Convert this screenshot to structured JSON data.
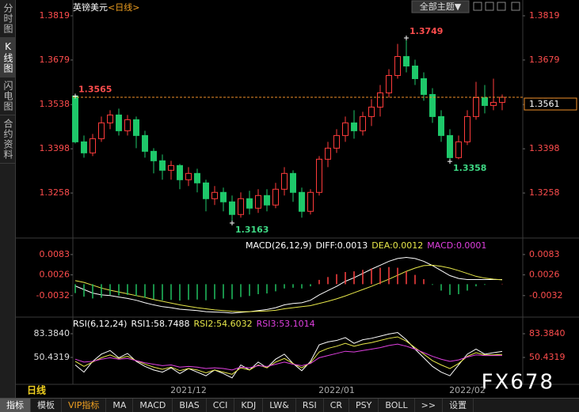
{
  "ui": {
    "sidebar_tabs": [
      "分时图",
      "K线图",
      "闪电图",
      "合约资料"
    ],
    "theme_button": "全部主题▼",
    "period_label": "日线",
    "watermark": "FX678",
    "bottom_tabs": [
      "指标",
      "模板",
      "VIP指标",
      "MA",
      "MACD",
      "BIAS",
      "CCI",
      "KDJ",
      "LW&",
      "RSI",
      "CR",
      "PSY",
      "BOLL",
      ">>",
      "设置"
    ]
  },
  "chart_data": [
    {
      "type": "candlestick",
      "title": "英镑美元",
      "subtitle": "<日线>",
      "up_color": "#ff3b3b",
      "down_color": "#1ec86a",
      "categories": [
        null,
        null,
        null,
        null,
        null,
        null,
        null,
        null,
        null,
        null,
        null,
        null,
        null,
        "2021/12",
        null,
        null,
        null,
        null,
        null,
        null,
        null,
        null,
        null,
        null,
        null,
        null,
        null,
        null,
        null,
        null,
        "2022/01",
        null,
        null,
        null,
        null,
        null,
        null,
        null,
        null,
        null,
        null,
        null,
        null,
        null,
        null,
        "2022/02",
        null,
        null,
        null,
        null
      ],
      "open": [
        1.3565,
        1.342,
        1.3385,
        1.343,
        1.348,
        1.3505,
        1.3455,
        1.349,
        1.344,
        1.339,
        1.336,
        1.333,
        1.3345,
        1.33,
        1.332,
        1.329,
        1.324,
        1.326,
        1.323,
        1.319,
        1.324,
        1.321,
        1.325,
        1.322,
        1.327,
        1.332,
        1.326,
        1.32,
        1.326,
        1.3365,
        1.34,
        1.344,
        1.348,
        1.3455,
        1.35,
        1.353,
        1.3575,
        1.363,
        1.369,
        1.366,
        1.362,
        1.357,
        1.35,
        1.344,
        1.337,
        1.342,
        1.35,
        1.356,
        1.3535,
        1.3545
      ],
      "high": [
        1.357,
        1.344,
        1.3445,
        1.35,
        1.352,
        1.3525,
        1.3505,
        1.35,
        1.3455,
        1.34,
        1.338,
        1.336,
        1.335,
        1.334,
        1.3335,
        1.33,
        1.328,
        1.3275,
        1.325,
        1.326,
        1.3265,
        1.327,
        1.327,
        1.329,
        1.334,
        1.333,
        1.3275,
        1.327,
        1.3375,
        1.342,
        1.346,
        1.35,
        1.352,
        1.3515,
        1.3555,
        1.36,
        1.365,
        1.373,
        1.3749,
        1.368,
        1.364,
        1.359,
        1.352,
        1.346,
        1.344,
        1.352,
        1.361,
        1.36,
        1.362,
        1.357
      ],
      "low": [
        1.3415,
        1.337,
        1.3375,
        1.342,
        1.346,
        1.344,
        1.344,
        1.34,
        1.337,
        1.332,
        1.33,
        1.33,
        1.327,
        1.328,
        1.326,
        1.32,
        1.322,
        1.32,
        1.3163,
        1.318,
        1.319,
        1.3195,
        1.32,
        1.321,
        1.325,
        1.323,
        1.318,
        1.319,
        1.325,
        1.334,
        1.3385,
        1.342,
        1.343,
        1.344,
        1.347,
        1.35,
        1.356,
        1.362,
        1.364,
        1.36,
        1.355,
        1.348,
        1.342,
        1.3358,
        1.3365,
        1.341,
        1.349,
        1.351,
        1.352,
        1.352
      ],
      "close": [
        1.342,
        1.3385,
        1.343,
        1.348,
        1.3505,
        1.3455,
        1.349,
        1.344,
        1.339,
        1.336,
        1.333,
        1.3345,
        1.33,
        1.332,
        1.329,
        1.324,
        1.326,
        1.323,
        1.319,
        1.324,
        1.321,
        1.325,
        1.322,
        1.327,
        1.332,
        1.326,
        1.32,
        1.326,
        1.3365,
        1.34,
        1.344,
        1.348,
        1.3455,
        1.35,
        1.353,
        1.3575,
        1.363,
        1.369,
        1.366,
        1.362,
        1.357,
        1.35,
        1.344,
        1.337,
        1.342,
        1.35,
        1.356,
        1.3535,
        1.3545,
        1.3561
      ],
      "annotations": [
        1.3565,
        1.3749,
        1.3358,
        1.3163
      ],
      "last_price": 1.3561,
      "last_price_color": "#f0902a",
      "ylim": [
        1.3118,
        1.3864
      ],
      "yticks": [
        1.3258,
        1.3398,
        1.3538,
        1.3679,
        1.3819
      ]
    },
    {
      "type": "macd",
      "title": "MACD(26,12,9)",
      "series": [
        {
          "name": "DIFF:",
          "color": "#ffffff",
          "values": [
            -0.0005,
            -0.0015,
            -0.0025,
            -0.003,
            -0.0032,
            -0.0036,
            -0.004,
            -0.0045,
            -0.0052,
            -0.0058,
            -0.0063,
            -0.0066,
            -0.007,
            -0.0072,
            -0.0074,
            -0.0077,
            -0.0078,
            -0.0079,
            -0.0081,
            -0.0079,
            -0.0077,
            -0.0074,
            -0.0071,
            -0.0066,
            -0.0058,
            -0.0054,
            -0.0052,
            -0.0045,
            -0.003,
            -0.0018,
            -0.0006,
            0.0008,
            0.0018,
            0.003,
            0.0042,
            0.0053,
            0.0064,
            0.0072,
            0.0075,
            0.0072,
            0.0064,
            0.0052,
            0.0038,
            0.0024,
            0.0016,
            0.0013,
            0.0013,
            0.0013,
            0.0013,
            0.0013
          ]
        },
        {
          "name": "DEA:",
          "color": "#e8e84a",
          "values": [
            0.001,
            0.0005,
            -0.0003,
            -0.0011,
            -0.0017,
            -0.0022,
            -0.0027,
            -0.0032,
            -0.0037,
            -0.0043,
            -0.0048,
            -0.0053,
            -0.0058,
            -0.0062,
            -0.0066,
            -0.0069,
            -0.0072,
            -0.0074,
            -0.0076,
            -0.0077,
            -0.0077,
            -0.0076,
            -0.0075,
            -0.0073,
            -0.0069,
            -0.0066,
            -0.0063,
            -0.006,
            -0.0054,
            -0.0048,
            -0.0041,
            -0.0033,
            -0.0024,
            -0.0015,
            -0.0006,
            0.0004,
            0.0014,
            0.0025,
            0.0036,
            0.0045,
            0.0052,
            0.0053,
            0.005,
            0.0045,
            0.0038,
            0.003,
            0.0022,
            0.0017,
            0.0014,
            0.0012
          ]
        },
        {
          "name": "MACD:",
          "color": "#e040e0",
          "style": "histogram",
          "up_color": "#ff4040",
          "down_color": "#20c060",
          "values": [
            -0.0025,
            -0.0035,
            -0.004,
            -0.0038,
            -0.003,
            -0.0032,
            -0.003,
            -0.0033,
            -0.0038,
            -0.0042,
            -0.0045,
            -0.0044,
            -0.0046,
            -0.0044,
            -0.0043,
            -0.0045,
            -0.0042,
            -0.004,
            -0.0042,
            -0.0036,
            -0.0033,
            -0.0028,
            -0.0026,
            -0.002,
            -0.0012,
            -0.001,
            -0.0012,
            -0.0006,
            0.0012,
            0.002,
            0.0028,
            0.0034,
            0.0036,
            0.004,
            0.0044,
            0.0046,
            0.0048,
            0.0046,
            0.0036,
            0.0026,
            0.0014,
            -0.0002,
            -0.0018,
            -0.003,
            -0.0028,
            -0.0018,
            -0.0006,
            -0.0002,
            0,
            0.0001
          ]
        }
      ],
      "ylim": [
        -0.009,
        0.0127
      ],
      "yticks": [
        -0.0032,
        0.0026,
        0.0083
      ]
    },
    {
      "type": "rsi",
      "title": "RSI(6,12,24)",
      "series": [
        {
          "name": "RSI1:",
          "color": "#ffffff",
          "values": [
            40,
            30,
            45,
            55,
            60,
            50,
            56,
            45,
            38,
            33,
            30,
            36,
            28,
            35,
            30,
            25,
            33,
            28,
            22,
            40,
            33,
            44,
            36,
            48,
            55,
            42,
            32,
            45,
            68,
            72,
            74,
            78,
            70,
            75,
            77,
            80,
            83,
            85,
            75,
            62,
            50,
            38,
            30,
            25,
            40,
            55,
            62,
            55,
            57,
            58.7488
          ]
        },
        {
          "name": "RSI2:",
          "color": "#e8e84a",
          "values": [
            45,
            38,
            44,
            50,
            54,
            49,
            52,
            46,
            41,
            37,
            34,
            37,
            32,
            35,
            33,
            29,
            33,
            30,
            27,
            36,
            33,
            40,
            36,
            44,
            49,
            42,
            36,
            43,
            58,
            63,
            66,
            70,
            66,
            69,
            71,
            74,
            77,
            79,
            73,
            64,
            55,
            46,
            40,
            35,
            42,
            52,
            57,
            54,
            54,
            54.6032
          ]
        },
        {
          "name": "RSI3:",
          "color": "#e040e0",
          "values": [
            48,
            44,
            45,
            48,
            50,
            48,
            49,
            46,
            43,
            41,
            39,
            40,
            37,
            38,
            37,
            35,
            36,
            35,
            33,
            37,
            36,
            39,
            38,
            41,
            44,
            41,
            39,
            42,
            50,
            53,
            56,
            59,
            58,
            60,
            62,
            64,
            67,
            69,
            66,
            62,
            57,
            52,
            48,
            45,
            47,
            51,
            54,
            53,
            53,
            53.1014
          ]
        }
      ],
      "ylim": [
        14.18,
        105.35
      ],
      "yticks": [
        {
          "value": 50.4319,
          "label": "50.4319"
        },
        {
          "value": 83.384,
          "label": "83.3840"
        }
      ]
    }
  ]
}
